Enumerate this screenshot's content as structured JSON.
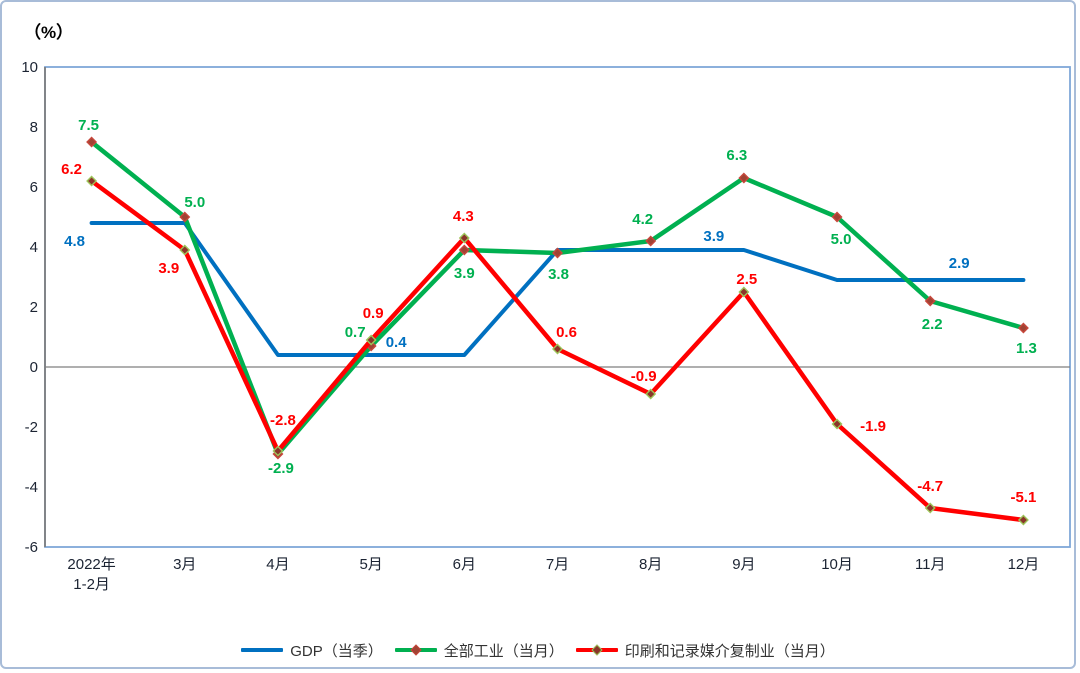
{
  "chart_data": {
    "type": "line",
    "title": "",
    "unit_label": "（%）",
    "legend_position": "bottom",
    "ylim": [
      -6,
      10
    ],
    "yticks": [
      10,
      8,
      6,
      4,
      2,
      0,
      -2,
      -4,
      -6
    ],
    "categories": [
      "2022年\n1-2月",
      "3月",
      "4月",
      "5月",
      "6月",
      "7月",
      "8月",
      "9月",
      "10月",
      "11月",
      "12月"
    ],
    "grid": "zero-line-only",
    "series": [
      {
        "name": "GDP（当季）",
        "color": "#0070C0",
        "marker": null,
        "values": [
          4.8,
          4.8,
          0.4,
          0.4,
          0.4,
          3.9,
          3.9,
          3.9,
          2.9,
          2.9,
          2.9
        ],
        "labels": [
          "4.8",
          null,
          null,
          "0.4",
          null,
          null,
          null,
          "3.9",
          null,
          "2.9",
          null
        ]
      },
      {
        "name": "全部工业（当月）",
        "color": "#00B050",
        "marker": {
          "shape": "diamond",
          "fill": "#a04334",
          "stroke": "#c7473c"
        },
        "values": [
          7.5,
          5.0,
          -2.9,
          0.7,
          3.9,
          3.8,
          4.2,
          6.3,
          5.0,
          2.2,
          1.3
        ],
        "labels": [
          "7.5",
          "5.0",
          "-2.9",
          "0.7",
          "3.9",
          "3.8",
          "4.2",
          "6.3",
          "5.0",
          "2.2",
          "1.3"
        ]
      },
      {
        "name": "印刷和记录媒介复制业（当月）",
        "color": "#FF0000",
        "marker": {
          "shape": "diamond",
          "fill": "#8a352a",
          "stroke": "#9dc55a"
        },
        "values": [
          6.2,
          3.9,
          -2.8,
          0.9,
          4.3,
          0.6,
          -0.9,
          2.5,
          -1.9,
          -4.7,
          -5.1
        ],
        "labels": [
          "6.2",
          "3.9",
          "-2.8",
          "0.9",
          "4.3",
          "0.6",
          "-0.9",
          "2.5",
          "-1.9",
          "-4.7",
          "-5.1"
        ]
      }
    ],
    "colors": {
      "plot_border": "#7fa8d9",
      "axis_line": "#7f7f7f",
      "zero_line": "#7f7f7f",
      "tick_text": "#1c2433",
      "legend_text": "#333333"
    }
  }
}
